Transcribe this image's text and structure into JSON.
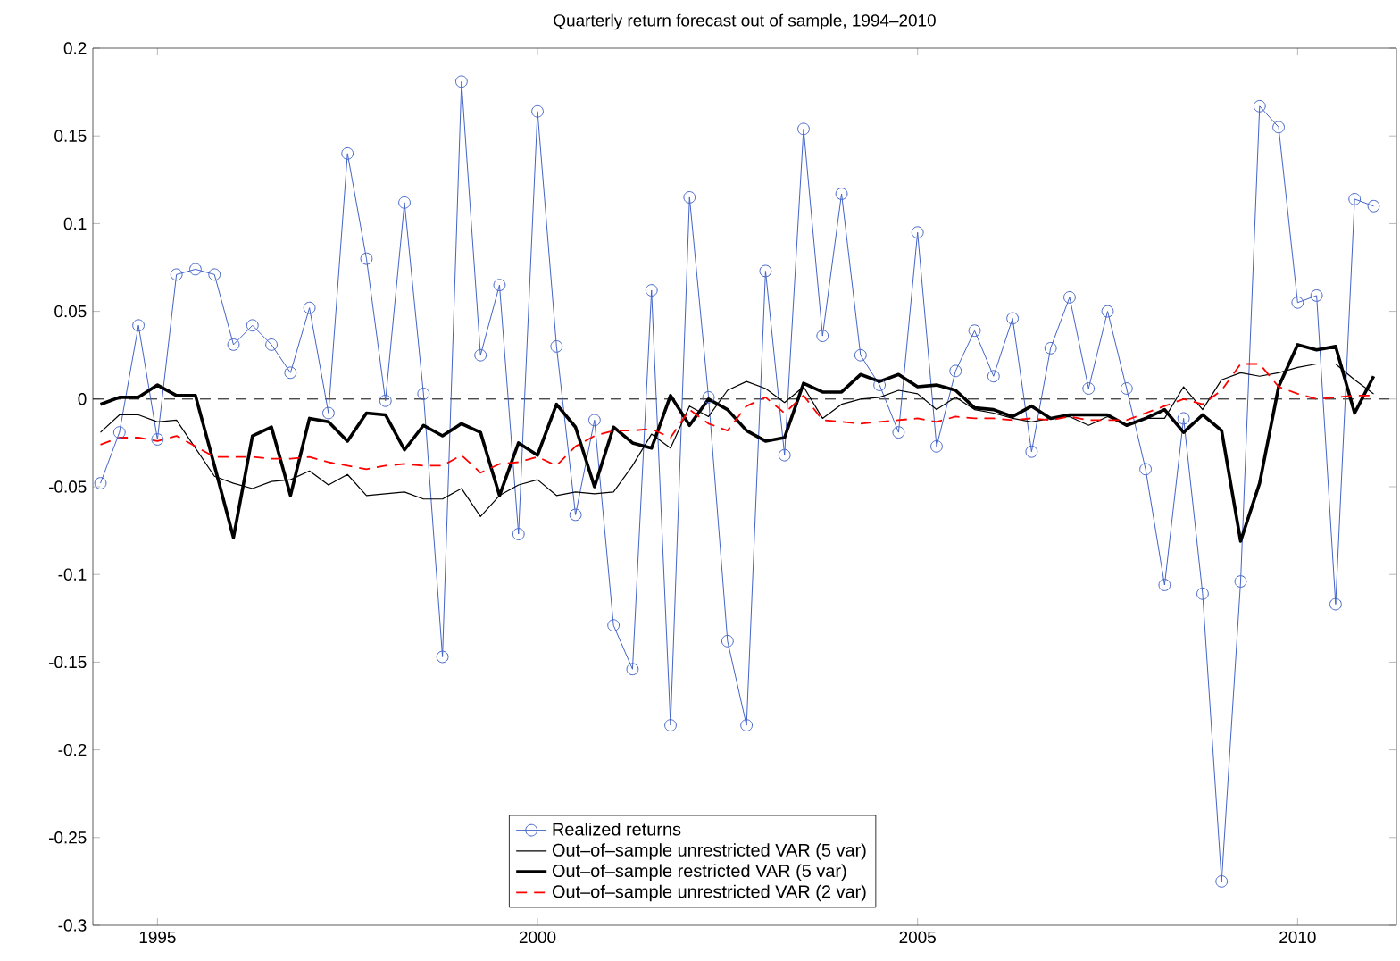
{
  "chart_data": {
    "type": "line",
    "title": "Quarterly return forecast out of sample, 1994–2010",
    "x": [
      1994.25,
      1994.5,
      1994.75,
      1995.0,
      1995.25,
      1995.5,
      1995.75,
      1996.0,
      1996.25,
      1996.5,
      1996.75,
      1997.0,
      1997.25,
      1997.5,
      1997.75,
      1998.0,
      1998.25,
      1998.5,
      1998.75,
      1999.0,
      1999.25,
      1999.5,
      1999.75,
      2000.0,
      2000.25,
      2000.5,
      2000.75,
      2001.0,
      2001.25,
      2001.5,
      2001.75,
      2002.0,
      2002.25,
      2002.5,
      2002.75,
      2003.0,
      2003.25,
      2003.5,
      2003.75,
      2004.0,
      2004.25,
      2004.5,
      2004.75,
      2005.0,
      2005.25,
      2005.5,
      2005.75,
      2006.0,
      2006.25,
      2006.5,
      2006.75,
      2007.0,
      2007.25,
      2007.5,
      2007.75,
      2008.0,
      2008.25,
      2008.5,
      2008.75,
      2009.0,
      2009.25,
      2009.5,
      2009.75,
      2010.0,
      2010.25,
      2010.5,
      2010.75,
      2011.0
    ],
    "series": [
      {
        "name": "Realized returns",
        "color": "#4262c8",
        "marker": "circle",
        "line_style": "solid",
        "values": [
          -0.048,
          -0.019,
          0.042,
          -0.023,
          0.071,
          0.074,
          0.071,
          0.031,
          0.042,
          0.031,
          0.015,
          0.052,
          -0.008,
          0.14,
          0.08,
          -0.001,
          0.112,
          0.003,
          -0.147,
          0.181,
          0.025,
          0.065,
          -0.077,
          0.164,
          0.03,
          -0.066,
          -0.012,
          -0.129,
          -0.154,
          0.062,
          -0.186,
          0.115,
          0.001,
          -0.138,
          -0.186,
          0.073,
          -0.032,
          0.154,
          0.036,
          0.117,
          0.025,
          0.008,
          -0.019,
          0.095,
          -0.027,
          0.016,
          0.039,
          0.013,
          0.046,
          -0.03,
          0.029,
          0.058,
          0.006,
          0.05,
          0.006,
          -0.04,
          -0.106,
          -0.011,
          -0.111,
          -0.275,
          -0.104,
          0.167,
          0.155,
          0.055,
          0.059,
          -0.117,
          0.114,
          0.11
        ]
      },
      {
        "name": "Out–of–sample unrestricted VAR (5 var)",
        "color": "#000000",
        "marker": "none",
        "line_style": "solid",
        "values": [
          -0.019,
          -0.009,
          -0.009,
          -0.013,
          -0.012,
          -0.028,
          -0.044,
          -0.048,
          -0.051,
          -0.047,
          -0.046,
          -0.041,
          -0.049,
          -0.043,
          -0.055,
          -0.054,
          -0.053,
          -0.057,
          -0.057,
          -0.051,
          -0.067,
          -0.055,
          -0.049,
          -0.046,
          -0.055,
          -0.053,
          -0.054,
          -0.053,
          -0.038,
          -0.02,
          -0.028,
          -0.004,
          -0.01,
          0.005,
          0.01,
          0.006,
          -0.002,
          0.007,
          -0.011,
          -0.003,
          0.0,
          0.001,
          0.005,
          0.003,
          -0.006,
          0.001,
          -0.006,
          -0.008,
          -0.011,
          -0.013,
          -0.011,
          -0.01,
          -0.015,
          -0.01,
          -0.015,
          -0.011,
          -0.011,
          0.007,
          -0.006,
          0.011,
          0.015,
          0.013,
          0.015,
          0.018,
          0.02,
          0.02,
          0.011,
          0.003
        ]
      },
      {
        "name": "Out–of–sample restricted VAR (5 var)",
        "color": "#000000",
        "marker": "none",
        "line_style": "solid",
        "values": [
          -0.003,
          0.001,
          0.001,
          0.008,
          0.002,
          0.002,
          -0.038,
          -0.079,
          -0.021,
          -0.016,
          -0.055,
          -0.011,
          -0.013,
          -0.024,
          -0.008,
          -0.009,
          -0.029,
          -0.015,
          -0.021,
          -0.014,
          -0.019,
          -0.055,
          -0.025,
          -0.032,
          -0.003,
          -0.016,
          -0.05,
          -0.016,
          -0.025,
          -0.028,
          0.002,
          -0.015,
          0.0,
          -0.006,
          -0.018,
          -0.024,
          -0.022,
          0.009,
          0.004,
          0.004,
          0.014,
          0.01,
          0.014,
          0.007,
          0.008,
          0.005,
          -0.005,
          -0.006,
          -0.01,
          -0.004,
          -0.011,
          -0.009,
          -0.009,
          -0.009,
          -0.015,
          -0.011,
          -0.006,
          -0.019,
          -0.009,
          -0.018,
          -0.081,
          -0.048,
          0.007,
          0.031,
          0.028,
          0.03,
          -0.008,
          0.013
        ]
      },
      {
        "name": "Out–of–sample unrestricted VAR (2 var)",
        "color": "#ff0000",
        "marker": "none",
        "line_style": "dashed",
        "values": [
          -0.026,
          -0.022,
          -0.022,
          -0.024,
          -0.021,
          -0.027,
          -0.033,
          -0.033,
          -0.033,
          -0.034,
          -0.034,
          -0.033,
          -0.036,
          -0.038,
          -0.04,
          -0.038,
          -0.037,
          -0.038,
          -0.038,
          -0.032,
          -0.042,
          -0.037,
          -0.036,
          -0.033,
          -0.038,
          -0.027,
          -0.021,
          -0.018,
          -0.018,
          -0.017,
          -0.022,
          -0.006,
          -0.014,
          -0.018,
          -0.004,
          0.001,
          -0.008,
          0.002,
          -0.012,
          -0.013,
          -0.014,
          -0.013,
          -0.012,
          -0.011,
          -0.013,
          -0.01,
          -0.011,
          -0.011,
          -0.012,
          -0.011,
          -0.012,
          -0.01,
          -0.012,
          -0.012,
          -0.012,
          -0.008,
          -0.004,
          0.0,
          -0.003,
          0.005,
          0.02,
          0.02,
          0.007,
          0.003,
          0.0,
          0.001,
          0.002,
          0.002
        ]
      }
    ],
    "xlim": [
      1994.15,
      2011.3
    ],
    "ylim": [
      -0.3,
      0.2
    ],
    "xticks": [
      1995,
      2000,
      2005,
      2010
    ],
    "yticks": [
      -0.3,
      -0.25,
      -0.2,
      -0.15,
      -0.1,
      -0.05,
      0,
      0.05,
      0.1,
      0.15,
      0.2
    ],
    "ref_lines": [
      {
        "axis": "y",
        "value": 0,
        "color": "#000000",
        "line_style": "dashed"
      }
    ],
    "grid": false,
    "legend": "bottom"
  }
}
